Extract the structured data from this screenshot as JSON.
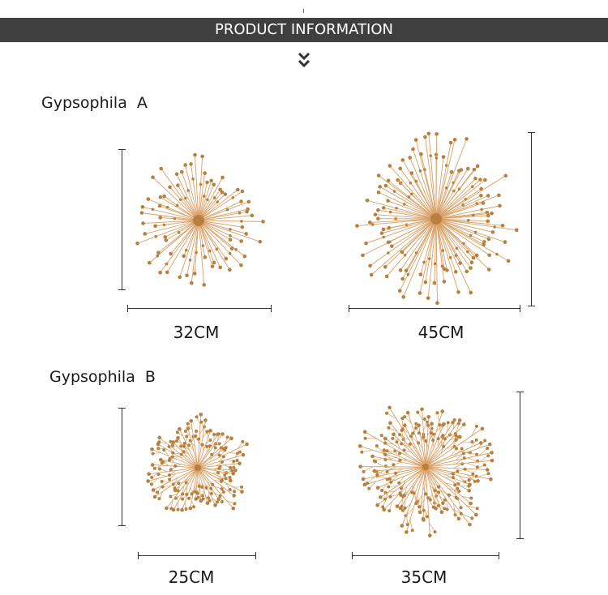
{
  "banner": {
    "title": "PRODUCT INFORMATION"
  },
  "section_a": {
    "name": "Gypsophila",
    "variant": "A",
    "sizes": [
      "32CM",
      "45CM"
    ]
  },
  "section_b": {
    "name": "Gypsophila",
    "variant": "B",
    "sizes": [
      "25CM",
      "35CM"
    ]
  },
  "colors": {
    "banner_bg": "#3f3f3f",
    "gold": "#d9a066",
    "gold_dark": "#b8803e"
  },
  "icons": [
    "double-chevron-down-icon"
  ]
}
